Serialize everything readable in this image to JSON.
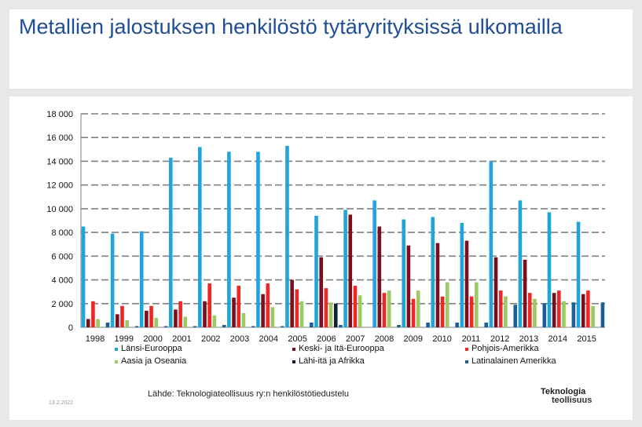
{
  "page": {
    "title": "Metallien jalostuksen henkilöstö tytäryrityksissä ulkomailla"
  },
  "footer": {
    "source": "Lähde: Teknologiateollisuus ry:n henkilöstötiedustelu",
    "date": "13.2.2022",
    "logo_line1": "Teknologia",
    "logo_line2": "teollisuus"
  },
  "chart_data": {
    "type": "bar",
    "title": "",
    "xlabel": "",
    "ylabel": "",
    "ylim": [
      0,
      18000
    ],
    "yticks": [
      0,
      2000,
      4000,
      6000,
      8000,
      10000,
      12000,
      14000,
      16000,
      18000
    ],
    "ytick_labels": [
      "0",
      "2 000",
      "4 000",
      "6 000",
      "8 000",
      "10 000",
      "12 000",
      "14 000",
      "16 000",
      "18 000"
    ],
    "grid": true,
    "legend": "bottom",
    "categories": [
      "1998",
      "1999",
      "2000",
      "2001",
      "2002",
      "2003",
      "2004",
      "2005",
      "2006",
      "2007",
      "2008",
      "2009",
      "2010",
      "2011",
      "2012",
      "2013",
      "2014",
      "2015"
    ],
    "series": [
      {
        "name": "Länsi-Eurooppa",
        "color": "#1fa6d9",
        "values": [
          8500,
          7900,
          8100,
          14300,
          15200,
          14800,
          14800,
          15300,
          9400,
          9900,
          10700,
          9100,
          9300,
          8800,
          14000,
          10700,
          9700,
          8900
        ]
      },
      {
        "name": "Keski- ja Itä-Eurooppa",
        "color": "#7a0f1e",
        "values": [
          700,
          1100,
          1400,
          1500,
          2200,
          2500,
          2800,
          4000,
          5900,
          9500,
          8500,
          6900,
          7100,
          7300,
          5900,
          5700,
          2900,
          2800
        ]
      },
      {
        "name": "Pohjois-Amerikka",
        "color": "#ee2724",
        "values": [
          2200,
          1800,
          1800,
          2200,
          3700,
          3500,
          3700,
          3200,
          3300,
          3500,
          2900,
          2400,
          2600,
          2600,
          3100,
          2900,
          3100,
          3100
        ]
      },
      {
        "name": "Aasia ja Oseania",
        "color": "#9bc966",
        "values": [
          700,
          600,
          800,
          900,
          1000,
          1200,
          1700,
          2200,
          2100,
          2700,
          3100,
          3100,
          3800,
          3800,
          2600,
          2400,
          2200,
          1800
        ]
      },
      {
        "name": "Lähi-itä ja Afrikka",
        "color": "#102030",
        "values": [
          0,
          0,
          0,
          0,
          0,
          0,
          0,
          0,
          2000,
          0,
          0,
          0,
          0,
          0,
          0,
          0,
          0,
          0
        ]
      },
      {
        "name": "Latinalainen Amerikka",
        "color": "#1b5f96",
        "values": [
          400,
          100,
          100,
          100,
          200,
          100,
          100,
          400,
          200,
          0,
          200,
          400,
          400,
          400,
          1900,
          2000,
          2100,
          2100
        ]
      }
    ]
  }
}
